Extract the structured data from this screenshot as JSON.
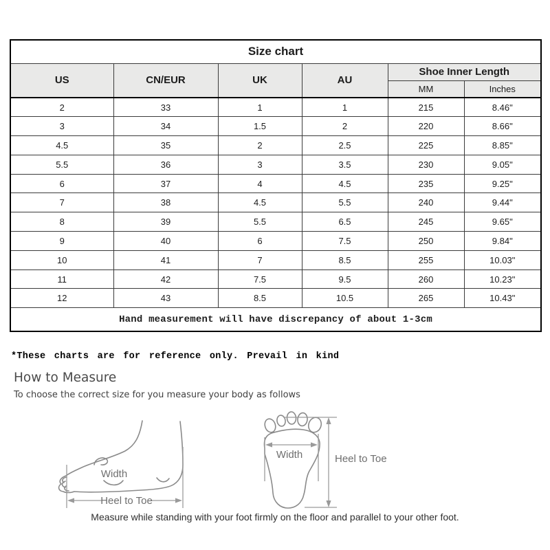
{
  "table": {
    "title": "Size chart",
    "columns": [
      "US",
      "CN/EUR",
      "UK",
      "AU"
    ],
    "inner_length_header": "Shoe Inner Length",
    "inner_length_subcolumns": [
      "MM",
      "Inches"
    ],
    "rows": [
      [
        "2",
        "33",
        "1",
        "1",
        "215",
        "8.46\""
      ],
      [
        "3",
        "34",
        "1.5",
        "2",
        "220",
        "8.66\""
      ],
      [
        "4.5",
        "35",
        "2",
        "2.5",
        "225",
        "8.85\""
      ],
      [
        "5.5",
        "36",
        "3",
        "3.5",
        "230",
        "9.05\""
      ],
      [
        "6",
        "37",
        "4",
        "4.5",
        "235",
        "9.25\""
      ],
      [
        "7",
        "38",
        "4.5",
        "5.5",
        "240",
        "9.44\""
      ],
      [
        "8",
        "39",
        "5.5",
        "6.5",
        "245",
        "9.65\""
      ],
      [
        "9",
        "40",
        "6",
        "7.5",
        "250",
        "9.84\""
      ],
      [
        "10",
        "41",
        "7",
        "8.5",
        "255",
        "10.03\""
      ],
      [
        "11",
        "42",
        "7.5",
        "9.5",
        "260",
        "10.23\""
      ],
      [
        "12",
        "43",
        "8.5",
        "10.5",
        "265",
        "10.43\""
      ]
    ],
    "footnote": "Hand measurement will have discrepancy of about 1-3cm"
  },
  "notes": {
    "reference": "*These charts are for reference only. Prevail in kind"
  },
  "measure": {
    "heading": "How to Measure",
    "subtitle": "To choose the correct size for you measure your body as follows",
    "side_width_label": "Width",
    "side_length_label": "Heel to Toe",
    "top_width_label": "Width",
    "top_length_label": "Heel to Toe",
    "caption": "Measure while standing with your foot firmly on the floor and parallel to your other foot."
  },
  "colors": {
    "header_bg": "#e9e9e8",
    "border_strong": "#000000",
    "sketch": "#8a8a8a",
    "dim_line": "#9a9a9a",
    "label": "#6e6e6e"
  }
}
